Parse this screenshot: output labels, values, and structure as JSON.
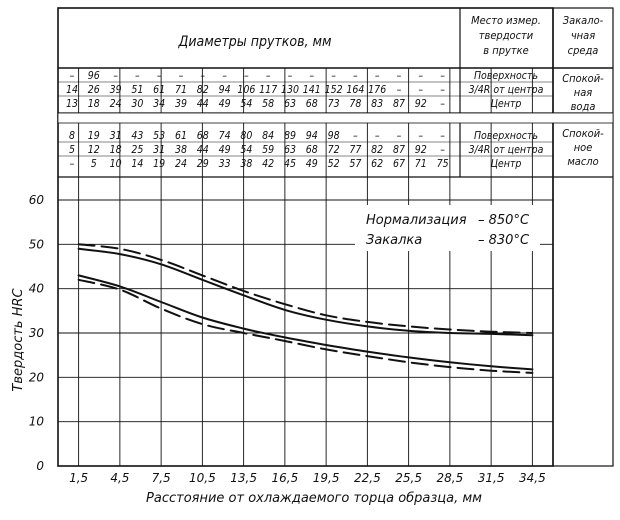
{
  "table": {
    "header_diam": "Диаметры прутков, мм",
    "header_place": [
      "Место измер.",
      "твердости",
      "в прутке"
    ],
    "header_medium": [
      "Закало-",
      "чная",
      "среда"
    ],
    "groups": [
      {
        "medium": [
          "Спокой-",
          "ная",
          "вода"
        ],
        "rows": [
          {
            "place": "Поверхность",
            "values": [
              "–",
              "96",
              "–",
              "–",
              "–",
              "–",
              "–",
              "–",
              "–",
              "–",
              "–",
              "–",
              "–",
              "–",
              "–",
              "–",
              "–",
              "–"
            ]
          },
          {
            "place": "3/4R от центра",
            "values": [
              "14",
              "26",
              "39",
              "51",
              "61",
              "71",
              "82",
              "94",
              "106",
              "117",
              "130",
              "141",
              "152",
              "164",
              "176",
              "–",
              "–",
              "–"
            ]
          },
          {
            "place": "Центр",
            "values": [
              "13",
              "18",
              "24",
              "30",
              "34",
              "39",
              "44",
              "49",
              "54",
              "58",
              "63",
              "68",
              "73",
              "78",
              "83",
              "87",
              "92",
              "–"
            ]
          }
        ]
      },
      {
        "medium": [
          "Спокой-",
          "ное",
          "масло"
        ],
        "rows": [
          {
            "place": "Поверхность",
            "values": [
              "8",
              "19",
              "31",
              "43",
              "53",
              "61",
              "68",
              "74",
              "80",
              "84",
              "89",
              "94",
              "98",
              "–",
              "–",
              "–",
              "–",
              "–"
            ]
          },
          {
            "place": "3/4R от центра",
            "values": [
              "5",
              "12",
              "18",
              "25",
              "31",
              "38",
              "44",
              "49",
              "54",
              "59",
              "63",
              "68",
              "72",
              "77",
              "82",
              "87",
              "92",
              "–"
            ]
          },
          {
            "place": "Центр",
            "values": [
              "–",
              "5",
              "10",
              "14",
              "19",
              "24",
              "29",
              "33",
              "38",
              "42",
              "45",
              "49",
              "52",
              "57",
              "62",
              "67",
              "71",
              "75"
            ]
          }
        ]
      }
    ]
  },
  "chart_data": {
    "type": "line",
    "title": "",
    "xlabel": "Расстояние от охлаждаемого торца образца, мм",
    "ylabel": "Твердость HRC",
    "x_ticks": [
      "1,5",
      "4,5",
      "7,5",
      "10,5",
      "13,5",
      "16,5",
      "19,5",
      "22,5",
      "25,5",
      "28,5",
      "31,5",
      "34,5"
    ],
    "y_ticks": [
      "0",
      "10",
      "20",
      "30",
      "40",
      "50",
      "60"
    ],
    "xlim": [
      0,
      36
    ],
    "ylim": [
      0,
      60
    ],
    "grid": true,
    "annotations": [
      {
        "label": "Нормализация",
        "value": "– 850°C"
      },
      {
        "label": "Закалка",
        "value": "– 830°C"
      }
    ],
    "series": [
      {
        "style": "solid",
        "x": [
          1.5,
          4.5,
          7.5,
          10.5,
          13.5,
          16.5,
          19.5,
          22.5,
          25.5,
          28.5,
          31.5,
          34.5
        ],
        "y": [
          49,
          47.8,
          45.5,
          42,
          38.5,
          35.2,
          33,
          31.5,
          30.5,
          30,
          29.8,
          29.5
        ]
      },
      {
        "style": "dashed",
        "x": [
          1.5,
          4.5,
          7.5,
          10.5,
          13.5,
          16.5,
          19.5,
          22.5,
          25.5,
          28.5,
          31.5,
          34.5
        ],
        "y": [
          50,
          49,
          46.5,
          43,
          39.5,
          36.5,
          34,
          32.5,
          31.5,
          30.8,
          30.3,
          30
        ]
      },
      {
        "style": "solid",
        "x": [
          1.5,
          4.5,
          7.5,
          10.5,
          13.5,
          16.5,
          19.5,
          22.5,
          25.5,
          28.5,
          31.5,
          34.5
        ],
        "y": [
          43,
          40.5,
          37,
          33.5,
          31,
          29,
          27.3,
          25.8,
          24.5,
          23.4,
          22.5,
          21.8
        ]
      },
      {
        "style": "dashed",
        "x": [
          1.5,
          4.5,
          7.5,
          10.5,
          13.5,
          16.5,
          19.5,
          22.5,
          25.5,
          28.5,
          31.5,
          34.5
        ],
        "y": [
          42,
          39.8,
          35.5,
          32,
          30,
          28.2,
          26.3,
          24.8,
          23.4,
          22.3,
          21.5,
          21
        ]
      }
    ]
  }
}
